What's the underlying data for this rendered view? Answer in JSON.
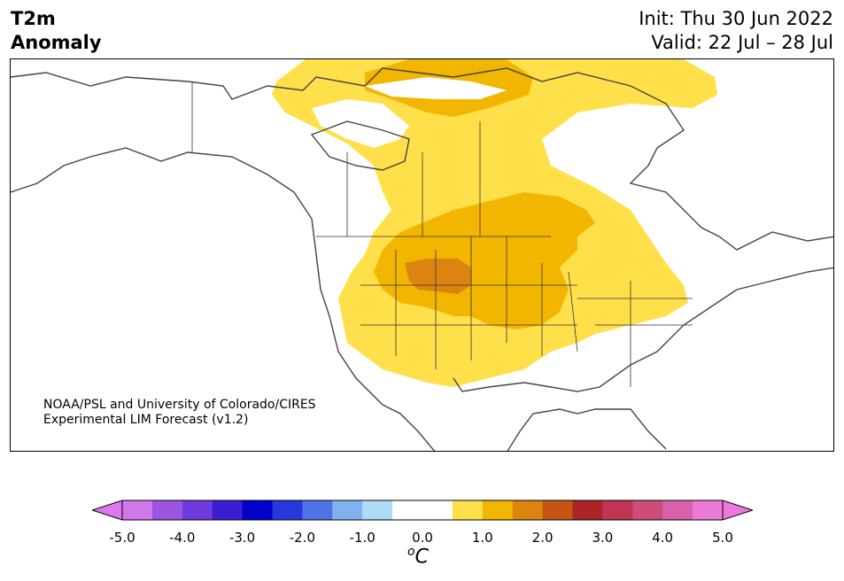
{
  "header": {
    "title_line1": "T2m",
    "title_line2": "Anomaly",
    "init": "Init: Thu 30 Jun 2022",
    "valid": "Valid: 22 Jul – 28 Jul"
  },
  "credit": {
    "line1": "NOAA/PSL and University of Colorado/CIRES",
    "line2": "Experimental LIM Forecast (v1.2)"
  },
  "colorbar": {
    "ticks": [
      "-5.0",
      "-4.0",
      "-3.0",
      "-2.0",
      "-1.0",
      "0.0",
      "1.0",
      "2.0",
      "3.0",
      "4.0",
      "5.0"
    ],
    "unit_sup": "o",
    "unit": "C",
    "under_color": "#dd77ee",
    "over_color": "#ee77dd",
    "colors": [
      "#d078ea",
      "#9b55e2",
      "#6f3bdc",
      "#3c1ed2",
      "#0000cd",
      "#2637dc",
      "#4f73e6",
      "#7eb3f0",
      "#aedcf8",
      "#ffffff",
      "#ffffff",
      "#ffe04a",
      "#f2b600",
      "#dc8410",
      "#c45412",
      "#ac2426",
      "#c03454",
      "#cc4c7c",
      "#d862aa",
      "#e87bd6"
    ]
  },
  "anomaly_colors": {
    "light": "#ffe04a",
    "medium": "#f2b600",
    "strong": "#dc8410"
  }
}
